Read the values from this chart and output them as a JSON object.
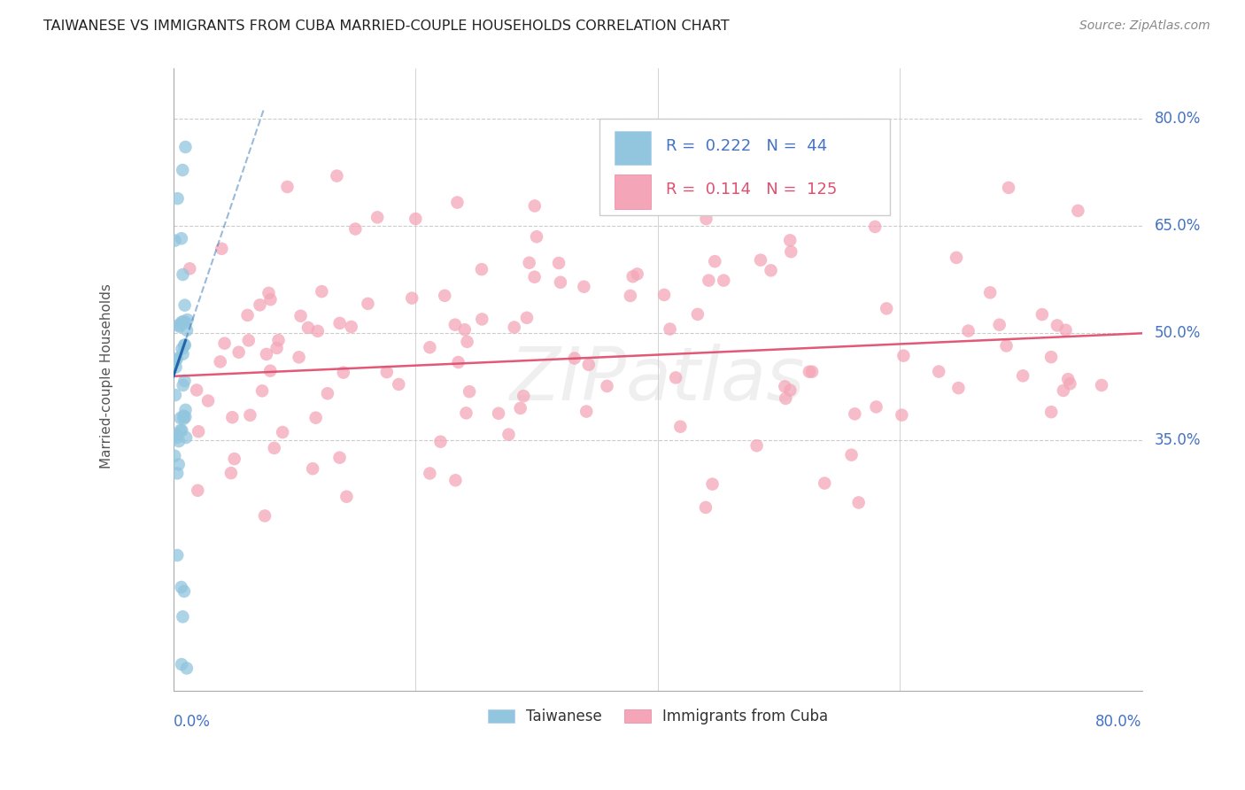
{
  "title": "TAIWANESE VS IMMIGRANTS FROM CUBA MARRIED-COUPLE HOUSEHOLDS CORRELATION CHART",
  "source": "Source: ZipAtlas.com",
  "ylabel": "Married-couple Households",
  "ytick_labels": [
    "80.0%",
    "65.0%",
    "50.0%",
    "35.0%"
  ],
  "ytick_values": [
    0.8,
    0.65,
    0.5,
    0.35
  ],
  "xmin": 0.0,
  "xmax": 0.8,
  "ymin": 0.0,
  "ymax": 0.87,
  "legend_blue_R": "0.222",
  "legend_blue_N": "44",
  "legend_pink_R": "0.114",
  "legend_pink_N": "125",
  "watermark": "ZIPatlas",
  "color_blue": "#92c5de",
  "color_pink": "#f4a6b8",
  "color_line_blue": "#2166ac",
  "color_line_pink": "#e05070",
  "color_axis_labels": "#4472c4",
  "color_grid": "#cccccc",
  "tw_seed": 10,
  "cu_seed": 7
}
